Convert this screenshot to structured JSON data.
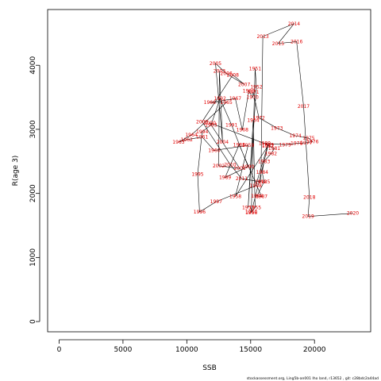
{
  "chart_data": {
    "type": "line",
    "xlabel": "SSB",
    "ylabel": "R(age 3)",
    "xlim": [
      -900,
      24400
    ],
    "ylim": [
      -160,
      4870
    ],
    "x_ticks": [
      0,
      5000,
      10000,
      15000,
      20000
    ],
    "y_ticks": [
      0,
      1000,
      2000,
      3000,
      4000
    ],
    "x_tick_labels": [
      "0",
      "5000",
      "10000",
      "15000",
      "20000"
    ],
    "y_tick_labels": [
      "0",
      "1000",
      "2000",
      "3000",
      "4000"
    ],
    "line_color": "#000000",
    "label_color": "#e00000",
    "footnote": "stockassessment.org,  Ling5b-an001  Iho  land,  r13652 ,  git:  c28bdc2a44ad",
    "points": [
      {
        "year": "1950",
        "x": 15050,
        "y": 1710
      },
      {
        "year": "1951",
        "x": 15350,
        "y": 3950
      },
      {
        "year": "1952",
        "x": 15450,
        "y": 3660
      },
      {
        "year": "1953",
        "x": 14800,
        "y": 1780
      },
      {
        "year": "1954",
        "x": 15200,
        "y": 3140
      },
      {
        "year": "1955",
        "x": 15350,
        "y": 1780
      },
      {
        "year": "1956",
        "x": 15050,
        "y": 1700
      },
      {
        "year": "1957",
        "x": 16350,
        "y": 2740
      },
      {
        "year": "1958",
        "x": 13800,
        "y": 1950
      },
      {
        "year": "1959",
        "x": 14800,
        "y": 2750
      },
      {
        "year": "1960",
        "x": 12150,
        "y": 2670
      },
      {
        "year": "1961",
        "x": 11200,
        "y": 2880
      },
      {
        "year": "1962",
        "x": 10000,
        "y": 2840
      },
      {
        "year": "1963",
        "x": 9350,
        "y": 2800
      },
      {
        "year": "1964",
        "x": 10350,
        "y": 2910
      },
      {
        "year": "1965",
        "x": 13100,
        "y": 3420
      },
      {
        "year": "1966",
        "x": 11800,
        "y": 3420
      },
      {
        "year": "1967",
        "x": 13800,
        "y": 3480
      },
      {
        "year": "1968",
        "x": 14350,
        "y": 2990
      },
      {
        "year": "1969",
        "x": 14850,
        "y": 3600
      },
      {
        "year": "1970",
        "x": 15150,
        "y": 3500
      },
      {
        "year": "1971",
        "x": 15200,
        "y": 3580
      },
      {
        "year": "1972",
        "x": 15650,
        "y": 3180
      },
      {
        "year": "1973",
        "x": 17050,
        "y": 3020
      },
      {
        "year": "1974",
        "x": 18500,
        "y": 2900
      },
      {
        "year": "1975",
        "x": 19550,
        "y": 2860
      },
      {
        "year": "1976",
        "x": 19850,
        "y": 2810
      },
      {
        "year": "1977",
        "x": 19350,
        "y": 2790
      },
      {
        "year": "1978",
        "x": 18600,
        "y": 2780
      },
      {
        "year": "1979",
        "x": 17700,
        "y": 2760
      },
      {
        "year": "1980",
        "x": 16100,
        "y": 2780
      },
      {
        "year": "1981",
        "x": 16850,
        "y": 2700
      },
      {
        "year": "1982",
        "x": 16600,
        "y": 2620
      },
      {
        "year": "1983",
        "x": 16050,
        "y": 2500
      },
      {
        "year": "1984",
        "x": 15900,
        "y": 2330
      },
      {
        "year": "1985",
        "x": 16050,
        "y": 2180
      },
      {
        "year": "1986",
        "x": 15500,
        "y": 1960
      },
      {
        "year": "1987",
        "x": 15850,
        "y": 1950
      },
      {
        "year": "1988",
        "x": 14100,
        "y": 2760
      },
      {
        "year": "1989",
        "x": 13000,
        "y": 2250
      },
      {
        "year": "1990",
        "x": 14800,
        "y": 2420
      },
      {
        "year": "1991",
        "x": 13500,
        "y": 3070
      },
      {
        "year": "1992",
        "x": 12600,
        "y": 3480
      },
      {
        "year": "1993",
        "x": 11900,
        "y": 3070
      },
      {
        "year": "1994",
        "x": 11200,
        "y": 2960
      },
      {
        "year": "1995",
        "x": 10850,
        "y": 2300
      },
      {
        "year": "1996",
        "x": 11000,
        "y": 1710
      },
      {
        "year": "1997",
        "x": 12300,
        "y": 1870
      },
      {
        "year": "1998",
        "x": 15400,
        "y": 2120
      },
      {
        "year": "1999",
        "x": 16350,
        "y": 2760
      },
      {
        "year": "2000",
        "x": 11800,
        "y": 3100
      },
      {
        "year": "2001",
        "x": 14150,
        "y": 2390
      },
      {
        "year": "2002",
        "x": 12500,
        "y": 2430
      },
      {
        "year": "2003",
        "x": 12550,
        "y": 3910
      },
      {
        "year": "2004",
        "x": 12800,
        "y": 2800
      },
      {
        "year": "2005",
        "x": 12250,
        "y": 4030
      },
      {
        "year": "2006",
        "x": 13100,
        "y": 3870
      },
      {
        "year": "2007",
        "x": 14500,
        "y": 3700
      },
      {
        "year": "2008",
        "x": 13600,
        "y": 3850
      },
      {
        "year": "2009",
        "x": 11200,
        "y": 3120
      },
      {
        "year": "2010",
        "x": 13400,
        "y": 2450
      },
      {
        "year": "2011",
        "x": 14300,
        "y": 2230
      },
      {
        "year": "2012",
        "x": 15800,
        "y": 2180
      },
      {
        "year": "2013",
        "x": 15950,
        "y": 4450
      },
      {
        "year": "2014",
        "x": 18400,
        "y": 4650
      },
      {
        "year": "2015",
        "x": 17150,
        "y": 4340
      },
      {
        "year": "2016",
        "x": 18600,
        "y": 4370
      },
      {
        "year": "2017",
        "x": 19150,
        "y": 3360
      },
      {
        "year": "2018",
        "x": 19600,
        "y": 1940
      },
      {
        "year": "2019",
        "x": 19500,
        "y": 1640
      },
      {
        "year": "2020",
        "x": 23000,
        "y": 1690
      }
    ]
  }
}
